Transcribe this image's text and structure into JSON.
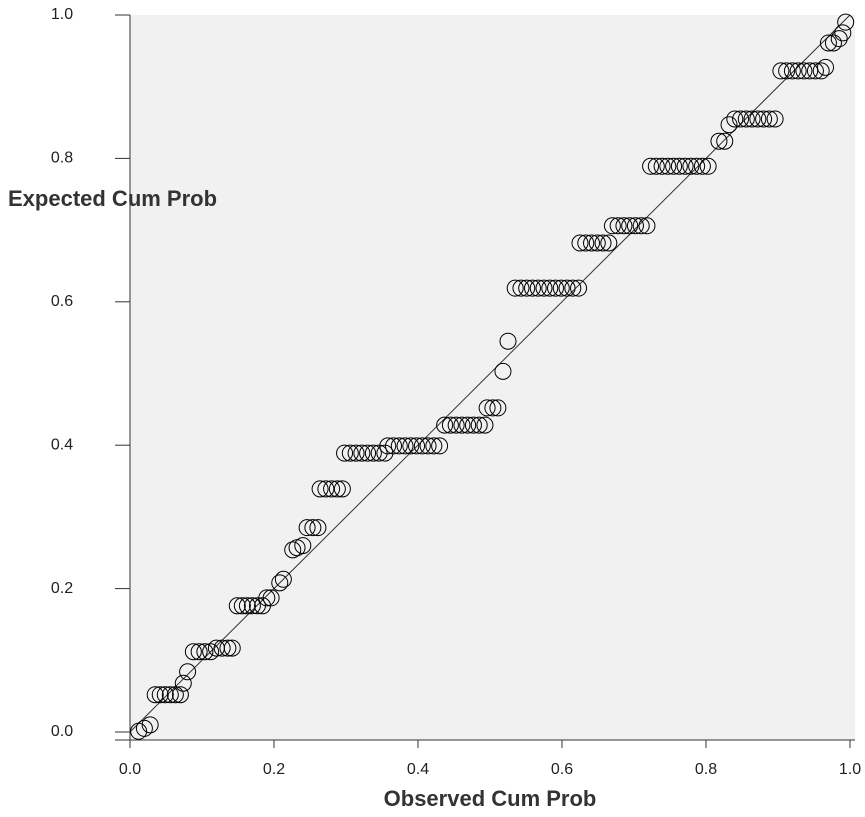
{
  "chart_data": {
    "type": "scatter",
    "x_label": "Observed Cum Prob",
    "y_label": "Expected Cum Prob",
    "x": [
      0.012,
      0.02,
      0.028,
      0.035,
      0.042,
      0.049,
      0.056,
      0.063,
      0.07,
      0.074,
      0.08,
      0.088,
      0.096,
      0.104,
      0.112,
      0.12,
      0.128,
      0.136,
      0.142,
      0.149,
      0.156,
      0.163,
      0.17,
      0.177,
      0.184,
      0.19,
      0.196,
      0.208,
      0.213,
      0.226,
      0.232,
      0.24,
      0.246,
      0.254,
      0.261,
      0.264,
      0.272,
      0.28,
      0.288,
      0.295,
      0.298,
      0.306,
      0.314,
      0.322,
      0.33,
      0.338,
      0.346,
      0.354,
      0.358,
      0.366,
      0.374,
      0.382,
      0.39,
      0.398,
      0.406,
      0.414,
      0.422,
      0.43,
      0.437,
      0.445,
      0.453,
      0.461,
      0.469,
      0.477,
      0.485,
      0.493,
      0.496,
      0.504,
      0.511,
      0.518,
      0.525,
      0.535,
      0.543,
      0.551,
      0.559,
      0.567,
      0.575,
      0.583,
      0.591,
      0.599,
      0.607,
      0.615,
      0.623,
      0.625,
      0.633,
      0.641,
      0.649,
      0.657,
      0.665,
      0.67,
      0.678,
      0.686,
      0.694,
      0.702,
      0.71,
      0.718,
      0.723,
      0.731,
      0.739,
      0.747,
      0.755,
      0.763,
      0.771,
      0.779,
      0.787,
      0.795,
      0.803,
      0.818,
      0.826,
      0.832,
      0.84,
      0.848,
      0.856,
      0.864,
      0.872,
      0.88,
      0.888,
      0.896,
      0.904,
      0.912,
      0.92,
      0.928,
      0.936,
      0.944,
      0.952,
      0.96,
      0.966,
      0.97,
      0.977,
      0.985,
      0.99,
      0.994
    ],
    "values": [
      0.001,
      0.005,
      0.01,
      0.052,
      0.052,
      0.052,
      0.052,
      0.052,
      0.052,
      0.068,
      0.084,
      0.112,
      0.112,
      0.112,
      0.112,
      0.117,
      0.117,
      0.117,
      0.117,
      0.176,
      0.176,
      0.176,
      0.176,
      0.176,
      0.176,
      0.187,
      0.187,
      0.208,
      0.213,
      0.254,
      0.257,
      0.26,
      0.285,
      0.285,
      0.285,
      0.339,
      0.339,
      0.339,
      0.339,
      0.339,
      0.389,
      0.389,
      0.389,
      0.389,
      0.389,
      0.389,
      0.389,
      0.389,
      0.399,
      0.399,
      0.399,
      0.399,
      0.399,
      0.399,
      0.399,
      0.399,
      0.399,
      0.399,
      0.428,
      0.428,
      0.428,
      0.428,
      0.428,
      0.428,
      0.428,
      0.428,
      0.452,
      0.452,
      0.452,
      0.503,
      0.545,
      0.619,
      0.619,
      0.619,
      0.619,
      0.619,
      0.619,
      0.619,
      0.619,
      0.619,
      0.619,
      0.619,
      0.619,
      0.682,
      0.682,
      0.682,
      0.682,
      0.682,
      0.682,
      0.706,
      0.706,
      0.706,
      0.706,
      0.706,
      0.706,
      0.706,
      0.789,
      0.789,
      0.789,
      0.789,
      0.789,
      0.789,
      0.789,
      0.789,
      0.789,
      0.789,
      0.789,
      0.824,
      0.824,
      0.847,
      0.855,
      0.855,
      0.855,
      0.855,
      0.855,
      0.855,
      0.855,
      0.855,
      0.922,
      0.922,
      0.922,
      0.922,
      0.922,
      0.922,
      0.922,
      0.922,
      0.927,
      0.961,
      0.961,
      0.967,
      0.975,
      0.99
    ],
    "color": "#000000",
    "xlim": [
      0,
      1
    ],
    "ylim": [
      0,
      1
    ],
    "xticks": [
      {
        "value": 0,
        "label": "0.0"
      },
      0.2,
      0.4,
      0.6,
      0.8,
      {
        "value": 1,
        "label": "1.0"
      }
    ],
    "yticks": [
      {
        "value": 0,
        "label": "0.0"
      },
      0.2,
      0.4,
      0.6,
      0.8,
      {
        "value": 1,
        "label": "1.0"
      }
    ],
    "reference_line": true
  }
}
